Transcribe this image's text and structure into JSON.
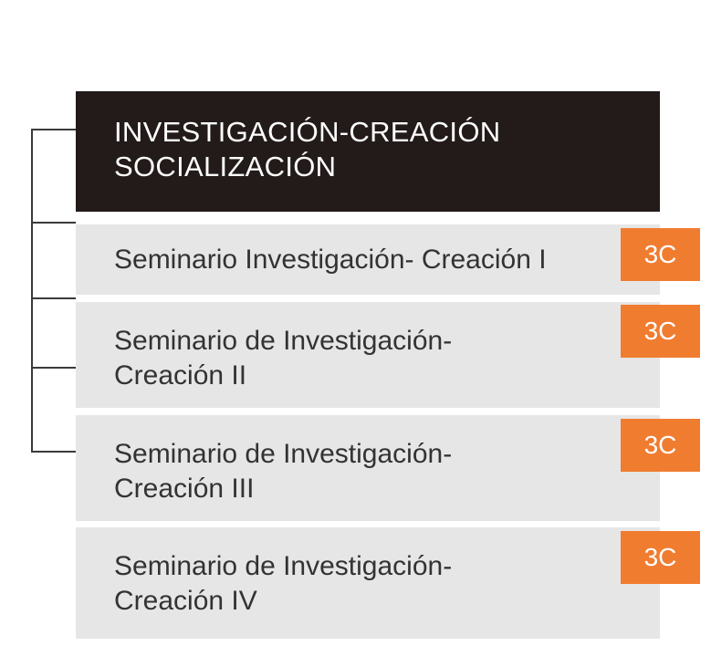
{
  "header": {
    "title": "INVESTIGACIÓN-CREACIÓN\nSOCIALIZACIÓN"
  },
  "courses": [
    {
      "name": "Seminario Investigación- Creación I",
      "credits": "3C"
    },
    {
      "name": "Seminario de Investigación-\nCreación II",
      "credits": "3C"
    },
    {
      "name": "Seminario de Investigación-\nCreación III",
      "credits": "3C"
    },
    {
      "name": "Seminario de Investigación-\nCreación IV",
      "credits": "3C"
    }
  ],
  "colors": {
    "header_bg": "#221b1a",
    "course_bg": "#e6e6e6",
    "badge_bg": "#f07c30"
  }
}
